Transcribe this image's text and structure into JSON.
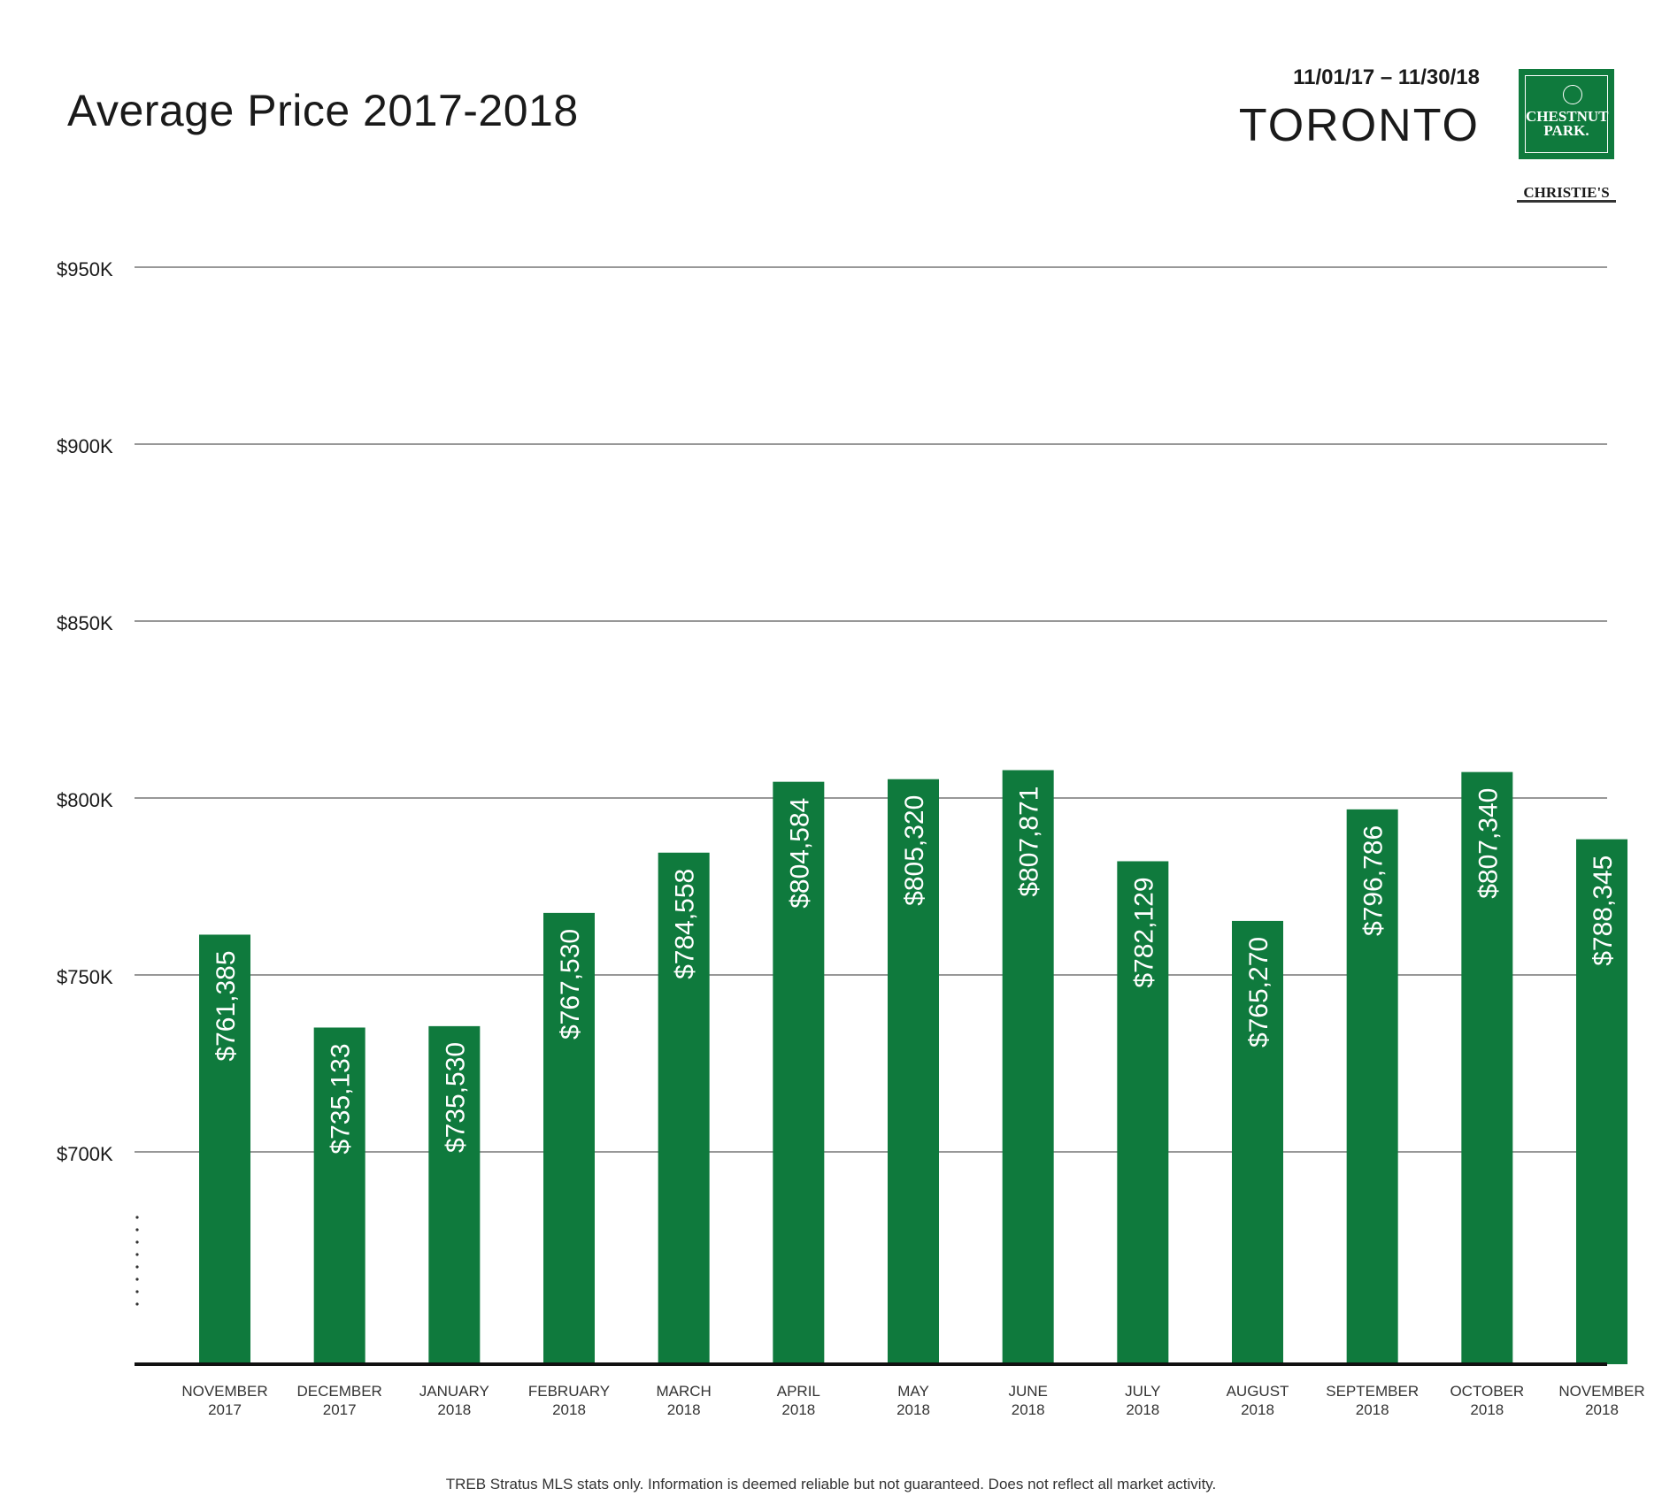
{
  "header": {
    "title": "Average Price 2017-2018",
    "date_range": "11/01/17 – 11/30/18",
    "city": "TORONTO"
  },
  "logo": {
    "name_line1": "CHESTNUT",
    "name_line2": "PARK.",
    "partner": "CHRISTIE'S"
  },
  "footnote": "TREB Stratus MLS stats only. Information is deemed reliable but not guaranteed. Does not reflect all market activity.",
  "colors": {
    "bar": "#0f7a3d",
    "grid": "#777777",
    "axis": "#111111"
  },
  "chart_data": {
    "type": "bar",
    "title": "Average Price 2017-2018",
    "xlabel": "",
    "ylabel": "",
    "ylim": [
      640000,
      950000
    ],
    "yticks": [
      {
        "value": 700000,
        "label": "$700K"
      },
      {
        "value": 750000,
        "label": "$750K"
      },
      {
        "value": 800000,
        "label": "$800K"
      },
      {
        "value": 850000,
        "label": "$850K"
      },
      {
        "value": 900000,
        "label": "$900K"
      },
      {
        "value": 950000,
        "label": "$950K"
      }
    ],
    "grid": true,
    "categories": [
      [
        "NOVEMBER",
        "2017"
      ],
      [
        "DECEMBER",
        "2017"
      ],
      [
        "JANUARY",
        "2018"
      ],
      [
        "FEBRUARY",
        "2018"
      ],
      [
        "MARCH",
        "2018"
      ],
      [
        "APRIL",
        "2018"
      ],
      [
        "MAY",
        "2018"
      ],
      [
        "JUNE",
        "2018"
      ],
      [
        "JULY",
        "2018"
      ],
      [
        "AUGUST",
        "2018"
      ],
      [
        "SEPTEMBER",
        "2018"
      ],
      [
        "OCTOBER",
        "2018"
      ],
      [
        "NOVEMBER",
        "2018"
      ]
    ],
    "values": [
      761385,
      735133,
      735530,
      767530,
      784558,
      804584,
      805320,
      807871,
      782129,
      765270,
      796786,
      807340,
      788345
    ],
    "labels": [
      "$761,385",
      "$735,133",
      "$735,530",
      "$767,530",
      "$784,558",
      "$804,584",
      "$805,320",
      "$807,871",
      "$782,129",
      "$765,270",
      "$796,786",
      "$807,340",
      "$788,345"
    ]
  }
}
